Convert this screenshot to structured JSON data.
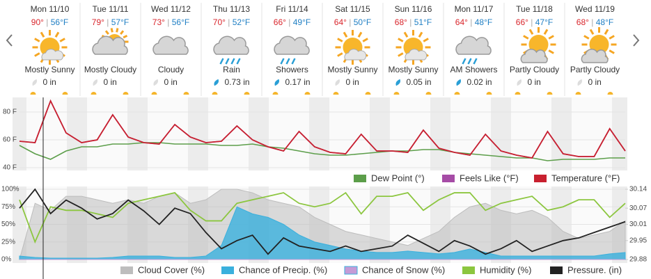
{
  "days": [
    {
      "day": "Mon 11/10",
      "high": "90°",
      "low": "56°F",
      "condition": "Mostly Sunny",
      "precip": "0 in"
    },
    {
      "day": "Tue 11/11",
      "high": "79°",
      "low": "57°F",
      "condition": "Mostly Cloudy",
      "precip": "0 in"
    },
    {
      "day": "Wed 11/12",
      "high": "73°",
      "low": "56°F",
      "condition": "Cloudy",
      "precip": "0 in"
    },
    {
      "day": "Thu 11/13",
      "high": "70°",
      "low": "52°F",
      "condition": "Rain",
      "precip": "0.73 in"
    },
    {
      "day": "Fri 11/14",
      "high": "66°",
      "low": "49°F",
      "condition": "Showers",
      "precip": "0.17 in"
    },
    {
      "day": "Sat 11/15",
      "high": "64°",
      "low": "50°F",
      "condition": "Mostly Sunny",
      "precip": "0 in"
    },
    {
      "day": "Sun 11/16",
      "high": "68°",
      "low": "51°F",
      "condition": "Mostly Sunny",
      "precip": "0.05 in"
    },
    {
      "day": "Mon 11/17",
      "high": "64°",
      "low": "48°F",
      "condition": "AM Showers",
      "precip": "0.02 in"
    },
    {
      "day": "Tue 11/18",
      "high": "66°",
      "low": "47°F",
      "condition": "Partly Cloudy",
      "precip": "0 in"
    },
    {
      "day": "Wed 11/19",
      "high": "68°",
      "low": "48°F",
      "condition": "Partly Cloudy",
      "precip": "0 in"
    }
  ],
  "chart_data": [
    {
      "type": "line",
      "ylim": [
        38,
        90.5
      ],
      "yticks": [
        {
          "value": 40,
          "label": "40 F"
        },
        {
          "value": 60,
          "label": "60 F"
        },
        {
          "value": 80,
          "label": "80 F"
        }
      ],
      "series": [
        {
          "name": "Dew Point (°)",
          "color": "#5c9e4a",
          "values": [
            56,
            50,
            46,
            52,
            55,
            55,
            57,
            57,
            58,
            58,
            57,
            57,
            57,
            56,
            56,
            57,
            55,
            54,
            52,
            50,
            49,
            49,
            50,
            51,
            52,
            52,
            53,
            53,
            51,
            50,
            49,
            48,
            47,
            47,
            45,
            46,
            46,
            46,
            47,
            47
          ]
        },
        {
          "name": "Feels Like (°F)",
          "color": "#a64ca6",
          "values": [
            59,
            58,
            88,
            65,
            58,
            60,
            78,
            62,
            58,
            57,
            71,
            62,
            58,
            59,
            70,
            60,
            55,
            52,
            66,
            55,
            51,
            50,
            64,
            52,
            52,
            51,
            67,
            54,
            51,
            49,
            64,
            52,
            49,
            47,
            66,
            50,
            48,
            48,
            68,
            52
          ]
        },
        {
          "name": "Temperature (°F)",
          "color": "#c8202f",
          "values": [
            59,
            58,
            88,
            65,
            58,
            60,
            78,
            62,
            58,
            57,
            71,
            62,
            58,
            59,
            70,
            60,
            55,
            52,
            66,
            55,
            51,
            50,
            64,
            52,
            52,
            51,
            67,
            54,
            51,
            49,
            64,
            52,
            49,
            47,
            66,
            50,
            48,
            48,
            68,
            52
          ]
        }
      ]
    },
    {
      "type": "mixed",
      "ylim": [
        0,
        100
      ],
      "y2lim": [
        29.88,
        30.14
      ],
      "yticks": [
        {
          "value": 0,
          "label": "0%"
        },
        {
          "value": 25,
          "label": "25%"
        },
        {
          "value": 50,
          "label": "50%"
        },
        {
          "value": 75,
          "label": "75%"
        },
        {
          "value": 100,
          "label": "100%"
        }
      ],
      "y2ticks": [
        29.88,
        29.95,
        30.01,
        30.07,
        30.14
      ],
      "series": [
        {
          "name": "Cloud Cover (%)",
          "color": "#bdbdbd",
          "kind": "area",
          "values": [
            0,
            80,
            70,
            90,
            90,
            85,
            80,
            85,
            80,
            90,
            95,
            80,
            85,
            100,
            100,
            95,
            85,
            80,
            75,
            60,
            50,
            40,
            35,
            30,
            25,
            20,
            30,
            40,
            60,
            75,
            80,
            70,
            65,
            70,
            60,
            40,
            30,
            35,
            40,
            55
          ]
        },
        {
          "name": "Chance of Precip. (%)",
          "color": "#3ab0dd",
          "kind": "area",
          "values": [
            5,
            3,
            2,
            2,
            2,
            2,
            3,
            5,
            5,
            5,
            3,
            3,
            5,
            20,
            75,
            65,
            60,
            50,
            35,
            25,
            20,
            15,
            12,
            10,
            10,
            12,
            10,
            8,
            10,
            15,
            10,
            5,
            5,
            5,
            5,
            5,
            5,
            5,
            8,
            10
          ]
        },
        {
          "name": "Chance of Snow (%)",
          "color": "#c59bd6",
          "kind": "area",
          "values": [
            0,
            0,
            0,
            0,
            0,
            0,
            0,
            0,
            0,
            0,
            0,
            0,
            0,
            0,
            0,
            0,
            0,
            0,
            0,
            0,
            0,
            0,
            0,
            0,
            0,
            0,
            0,
            0,
            0,
            0,
            0,
            0,
            0,
            0,
            0,
            0,
            0,
            0,
            0,
            0
          ]
        },
        {
          "name": "Humidity (%)",
          "color": "#8cc63f",
          "kind": "line",
          "values": [
            85,
            25,
            75,
            70,
            70,
            65,
            60,
            80,
            85,
            90,
            95,
            70,
            55,
            55,
            80,
            85,
            90,
            95,
            80,
            75,
            80,
            95,
            65,
            90,
            90,
            95,
            70,
            85,
            95,
            95,
            70,
            80,
            85,
            90,
            70,
            75,
            85,
            85,
            60,
            80
          ]
        },
        {
          "name": "Pressure. (in)",
          "color": "#222222",
          "kind": "line",
          "axis": "y2",
          "values": [
            30.07,
            30.14,
            30.05,
            30.1,
            30.07,
            30.03,
            30.05,
            30.1,
            30.06,
            30.01,
            30.07,
            30.05,
            29.98,
            29.92,
            29.95,
            29.97,
            29.9,
            29.96,
            29.93,
            29.92,
            29.91,
            29.93,
            29.91,
            29.92,
            29.93,
            29.97,
            29.94,
            29.91,
            29.95,
            29.93,
            29.9,
            29.92,
            29.95,
            29.91,
            29.93,
            29.95,
            29.96,
            29.98,
            30.0,
            30.02
          ]
        }
      ]
    }
  ]
}
